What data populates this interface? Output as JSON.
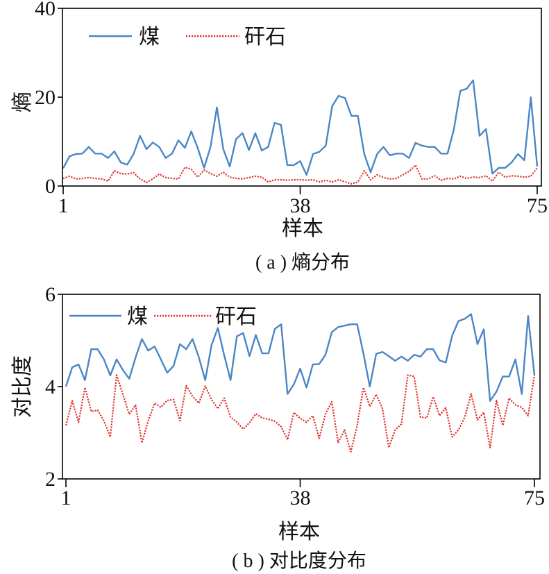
{
  "chart_data": [
    {
      "type": "line",
      "caption": "( a ) 熵分布",
      "xlabel": "样本",
      "ylabel": "熵",
      "xlim": [
        1,
        75
      ],
      "ylim": [
        0,
        40
      ],
      "xticks": [
        1,
        38,
        75
      ],
      "yticks": [
        0,
        20,
        40
      ],
      "grid": false,
      "legend": "top-left",
      "x": [
        1,
        2,
        3,
        4,
        5,
        6,
        7,
        8,
        9,
        10,
        11,
        12,
        13,
        14,
        15,
        16,
        17,
        18,
        19,
        20,
        21,
        22,
        23,
        24,
        25,
        26,
        27,
        28,
        29,
        30,
        31,
        32,
        33,
        34,
        35,
        36,
        37,
        38,
        39,
        40,
        41,
        42,
        43,
        44,
        45,
        46,
        47,
        48,
        49,
        50,
        51,
        52,
        53,
        54,
        55,
        56,
        57,
        58,
        59,
        60,
        61,
        62,
        63,
        64,
        65,
        66,
        67,
        68,
        69,
        70,
        71,
        72,
        73,
        74,
        75
      ],
      "series": [
        {
          "name": "煤",
          "color": "#4a86c6",
          "line_style": "solid",
          "values": [
            4.0,
            6.7,
            7.2,
            7.3,
            8.8,
            7.3,
            7.3,
            6.3,
            7.8,
            5.3,
            4.8,
            7.2,
            11.3,
            8.3,
            9.8,
            8.8,
            6.3,
            7.3,
            10.3,
            8.6,
            12.3,
            8.6,
            4.1,
            8.8,
            17.7,
            8.3,
            4.4,
            10.6,
            11.9,
            8.1,
            11.9,
            8.0,
            8.8,
            14.2,
            13.8,
            4.7,
            4.7,
            5.6,
            2.5,
            7.2,
            7.7,
            9.1,
            18.0,
            20.3,
            19.8,
            15.8,
            15.8,
            7.2,
            3.1,
            7.2,
            8.8,
            6.9,
            7.3,
            7.3,
            6.3,
            9.7,
            9.1,
            8.8,
            8.8,
            7.3,
            7.3,
            12.8,
            21.4,
            21.9,
            23.8,
            11.3,
            12.8,
            2.8,
            4.1,
            4.1,
            5.3,
            7.2,
            5.8,
            20.0,
            4.4
          ]
        },
        {
          "name": "矸石",
          "color": "#e1312a",
          "line_style": "dotted",
          "values": [
            1.7,
            2.2,
            1.6,
            1.7,
            1.9,
            1.7,
            1.6,
            1.1,
            3.4,
            2.8,
            2.7,
            3.0,
            1.6,
            0.8,
            1.6,
            2.7,
            1.9,
            1.7,
            1.6,
            4.2,
            3.8,
            2.0,
            3.6,
            2.8,
            2.2,
            3.1,
            2.0,
            1.7,
            1.6,
            1.9,
            2.2,
            2.0,
            0.9,
            1.4,
            1.4,
            1.3,
            1.4,
            1.4,
            1.3,
            1.4,
            0.9,
            1.3,
            0.9,
            1.4,
            0.9,
            0.5,
            0.9,
            3.4,
            1.4,
            2.5,
            1.9,
            1.6,
            1.7,
            2.5,
            3.3,
            4.7,
            1.6,
            1.6,
            2.3,
            1.3,
            1.7,
            1.6,
            2.2,
            1.7,
            2.0,
            1.9,
            2.3,
            1.1,
            3.1,
            2.0,
            2.3,
            2.2,
            2.0,
            2.2,
            4.1
          ]
        }
      ]
    },
    {
      "type": "line",
      "caption": "( b ) 对比度分布",
      "xlabel": "样本",
      "ylabel": "对比度",
      "xlim": [
        1,
        75
      ],
      "ylim": [
        2,
        6
      ],
      "xticks": [
        1,
        38,
        75
      ],
      "yticks": [
        2,
        4,
        6
      ],
      "grid": false,
      "legend": "top-left",
      "x": [
        1,
        2,
        3,
        4,
        5,
        6,
        7,
        8,
        9,
        10,
        11,
        12,
        13,
        14,
        15,
        16,
        17,
        18,
        19,
        20,
        21,
        22,
        23,
        24,
        25,
        26,
        27,
        28,
        29,
        30,
        31,
        32,
        33,
        34,
        35,
        36,
        37,
        38,
        39,
        40,
        41,
        42,
        43,
        44,
        45,
        46,
        47,
        48,
        49,
        50,
        51,
        52,
        53,
        54,
        55,
        56,
        57,
        58,
        59,
        60,
        61,
        62,
        63,
        64,
        65,
        66,
        67,
        68,
        69,
        70,
        71,
        72,
        73,
        74,
        75
      ],
      "series": [
        {
          "name": "煤",
          "color": "#4a86c6",
          "line_style": "solid",
          "values": [
            4.0,
            4.42,
            4.48,
            4.14,
            4.81,
            4.81,
            4.59,
            4.24,
            4.59,
            4.36,
            4.17,
            4.63,
            5.03,
            4.78,
            4.87,
            4.59,
            4.3,
            4.45,
            4.92,
            4.81,
            5.03,
            4.63,
            4.14,
            4.9,
            5.27,
            4.68,
            4.14,
            5.09,
            5.16,
            4.66,
            5.12,
            4.72,
            4.72,
            5.25,
            5.35,
            3.84,
            4.05,
            4.39,
            3.98,
            4.48,
            4.49,
            4.69,
            5.18,
            5.29,
            5.32,
            5.35,
            5.35,
            4.71,
            4.0,
            4.71,
            4.75,
            4.66,
            4.56,
            4.65,
            4.56,
            4.69,
            4.65,
            4.81,
            4.81,
            4.57,
            4.52,
            5.1,
            5.42,
            5.47,
            5.57,
            4.92,
            5.24,
            3.69,
            3.89,
            4.22,
            4.22,
            4.59,
            3.84,
            5.53,
            4.25
          ]
        },
        {
          "name": "矸石",
          "color": "#e1312a",
          "line_style": "dotted",
          "values": [
            3.16,
            3.69,
            3.23,
            3.98,
            3.46,
            3.49,
            3.26,
            2.91,
            4.25,
            3.83,
            3.4,
            3.6,
            2.78,
            3.26,
            3.64,
            3.55,
            3.7,
            3.72,
            3.26,
            4.02,
            3.79,
            3.64,
            4.01,
            3.72,
            3.52,
            3.75,
            3.34,
            3.23,
            3.08,
            3.22,
            3.41,
            3.32,
            3.29,
            3.25,
            3.13,
            2.85,
            3.44,
            3.31,
            3.23,
            3.37,
            2.88,
            3.41,
            3.67,
            2.79,
            3.06,
            2.59,
            3.16,
            3.98,
            3.57,
            3.83,
            3.52,
            2.68,
            3.06,
            3.19,
            4.25,
            4.22,
            3.34,
            3.32,
            3.78,
            3.37,
            3.54,
            2.91,
            3.06,
            3.34,
            3.84,
            3.28,
            3.44,
            2.68,
            3.7,
            3.16,
            3.75,
            3.6,
            3.55,
            3.37,
            4.25
          ]
        }
      ]
    }
  ]
}
